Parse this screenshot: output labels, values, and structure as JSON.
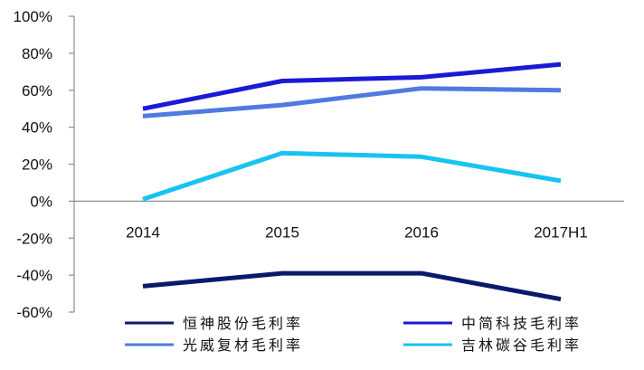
{
  "chart_data": {
    "type": "line",
    "title": "",
    "xlabel": "",
    "ylabel": "",
    "categories": [
      "2014",
      "2015",
      "2016",
      "2017H1"
    ],
    "ylim": [
      -60,
      100
    ],
    "yticks": [
      "100%",
      "80%",
      "60%",
      "40%",
      "20%",
      "0%",
      "-20%",
      "-40%",
      "-60%"
    ],
    "ytick_values": [
      100,
      80,
      60,
      40,
      20,
      0,
      -20,
      -40,
      -60
    ],
    "grid": false,
    "legend_position": "bottom",
    "series": [
      {
        "name": "恒神股份毛利率",
        "color": "#0a1a6b",
        "values": [
          -46,
          -39,
          -39,
          -53
        ]
      },
      {
        "name": "中简科技毛利率",
        "color": "#1a1ad6",
        "values": [
          50,
          65,
          67,
          74
        ]
      },
      {
        "name": "光威复材毛利率",
        "color": "#4f7be0",
        "values": [
          46,
          52,
          61,
          60
        ]
      },
      {
        "name": "吉林碳谷毛利率",
        "color": "#19c3ef",
        "values": [
          1,
          26,
          24,
          11
        ]
      }
    ]
  }
}
